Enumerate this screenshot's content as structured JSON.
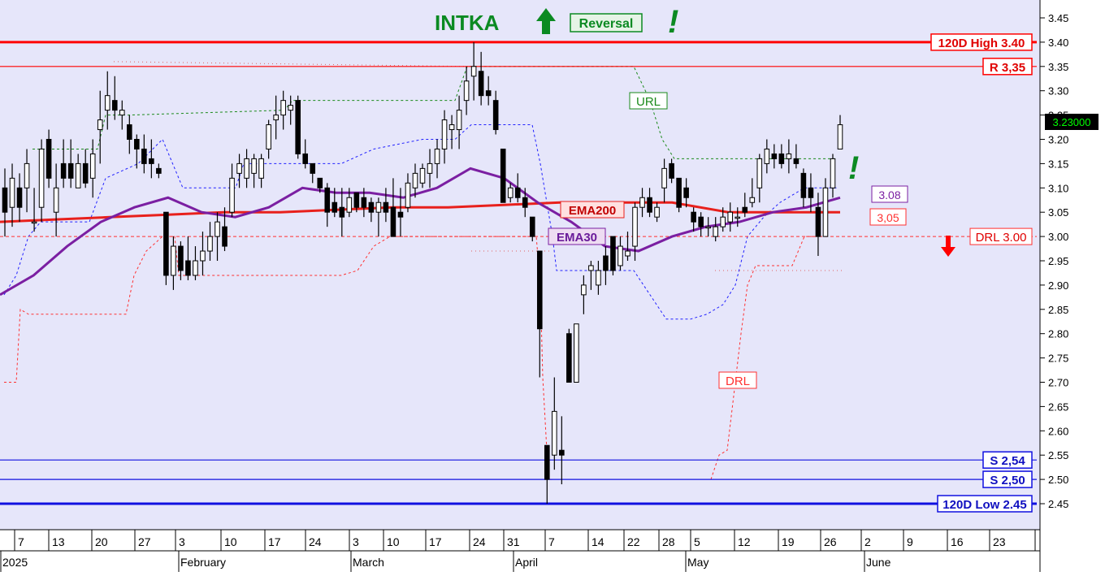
{
  "header": {
    "ticker": "INTKA",
    "signal_label": "Reversal",
    "arrow_up": "up-arrow",
    "exclaim": "!"
  },
  "colors": {
    "background": "#e6e6fa",
    "axis_bg": "#ffffff",
    "bull_candle": "#ffffff",
    "bear_candle": "#000000",
    "ema200": "#e8201c",
    "ema30": "#7b1fa2",
    "resistance": "#ff0000",
    "support": "#1010e0",
    "url_line": "#1a8a1a",
    "drl_line": "#ff3030",
    "band_blue": "#2020ff",
    "signal_green": "#0b8a22"
  },
  "chart_data": {
    "type": "candlestick",
    "title": "INTKA",
    "ylim": [
      2.41,
      3.47
    ],
    "y_ticks": [
      "3.45",
      "3.40",
      "3.35",
      "3.30",
      "3.25",
      "3.20",
      "3.15",
      "3.10",
      "3.05",
      "3.00",
      "2.95",
      "2.90",
      "2.85",
      "2.80",
      "2.75",
      "2.70",
      "2.65",
      "2.60",
      "2.55",
      "2.50",
      "2.45"
    ],
    "x_ticks": [
      "7",
      "13",
      "20",
      "27",
      "3",
      "10",
      "17",
      "24",
      "3",
      "10",
      "17",
      "24",
      "31",
      "7",
      "14",
      "22",
      "28",
      "5",
      "12",
      "19",
      "26",
      "2",
      "9",
      "16",
      "23"
    ],
    "months": [
      "2025",
      "February",
      "March",
      "April",
      "May",
      "June"
    ],
    "last_price_label": "3.23000",
    "candles": [
      {
        "o": 3.1,
        "h": 3.14,
        "l": 3.0,
        "c": 3.05
      },
      {
        "o": 3.06,
        "h": 3.15,
        "l": 3.02,
        "c": 3.12
      },
      {
        "o": 3.1,
        "h": 3.13,
        "l": 3.03,
        "c": 3.06
      },
      {
        "o": 3.1,
        "h": 3.18,
        "l": 3.05,
        "c": 3.15
      },
      {
        "o": 3.03,
        "h": 3.1,
        "l": 3.01,
        "c": 3.03
      },
      {
        "o": 3.06,
        "h": 3.2,
        "l": 3.03,
        "c": 3.18
      },
      {
        "o": 3.2,
        "h": 3.22,
        "l": 3.1,
        "c": 3.12
      },
      {
        "o": 3.05,
        "h": 3.15,
        "l": 3.0,
        "c": 3.1
      },
      {
        "o": 3.15,
        "h": 3.2,
        "l": 3.1,
        "c": 3.12
      },
      {
        "o": 3.15,
        "h": 3.2,
        "l": 3.1,
        "c": 3.12
      },
      {
        "o": 3.1,
        "h": 3.17,
        "l": 3.1,
        "c": 3.15
      },
      {
        "o": 3.15,
        "h": 3.18,
        "l": 3.1,
        "c": 3.11
      },
      {
        "o": 3.12,
        "h": 3.2,
        "l": 3.08,
        "c": 3.17
      },
      {
        "o": 3.22,
        "h": 3.3,
        "l": 3.15,
        "c": 3.24
      },
      {
        "o": 3.26,
        "h": 3.34,
        "l": 3.22,
        "c": 3.29
      },
      {
        "o": 3.28,
        "h": 3.33,
        "l": 3.24,
        "c": 3.26
      },
      {
        "o": 3.25,
        "h": 3.28,
        "l": 3.22,
        "c": 3.26
      },
      {
        "o": 3.23,
        "h": 3.25,
        "l": 3.17,
        "c": 3.2
      },
      {
        "o": 3.2,
        "h": 3.21,
        "l": 3.14,
        "c": 3.18
      },
      {
        "o": 3.18,
        "h": 3.21,
        "l": 3.13,
        "c": 3.15
      },
      {
        "o": 3.16,
        "h": 3.2,
        "l": 3.12,
        "c": 3.15
      },
      {
        "o": 3.14,
        "h": 3.15,
        "l": 3.12,
        "c": 3.13
      },
      {
        "o": 3.05,
        "h": 3.05,
        "l": 2.9,
        "c": 2.92
      },
      {
        "o": 2.92,
        "h": 3.0,
        "l": 2.89,
        "c": 2.98
      },
      {
        "o": 2.98,
        "h": 2.99,
        "l": 2.91,
        "c": 2.93
      },
      {
        "o": 2.95,
        "h": 3.0,
        "l": 2.91,
        "c": 2.92
      },
      {
        "o": 2.92,
        "h": 2.98,
        "l": 2.91,
        "c": 2.95
      },
      {
        "o": 2.95,
        "h": 3.01,
        "l": 2.92,
        "c": 2.97
      },
      {
        "o": 2.97,
        "h": 3.03,
        "l": 2.95,
        "c": 3.0
      },
      {
        "o": 3.0,
        "h": 3.05,
        "l": 2.95,
        "c": 3.03
      },
      {
        "o": 3.02,
        "h": 3.06,
        "l": 2.97,
        "c": 2.98
      },
      {
        "o": 3.05,
        "h": 3.15,
        "l": 3.04,
        "c": 3.12
      },
      {
        "o": 3.13,
        "h": 3.17,
        "l": 3.1,
        "c": 3.15
      },
      {
        "o": 3.12,
        "h": 3.18,
        "l": 3.1,
        "c": 3.16
      },
      {
        "o": 3.13,
        "h": 3.17,
        "l": 3.1,
        "c": 3.16
      },
      {
        "o": 3.12,
        "h": 3.17,
        "l": 3.1,
        "c": 3.16
      },
      {
        "o": 3.18,
        "h": 3.24,
        "l": 3.16,
        "c": 3.23
      },
      {
        "o": 3.24,
        "h": 3.29,
        "l": 3.2,
        "c": 3.25
      },
      {
        "o": 3.25,
        "h": 3.3,
        "l": 3.22,
        "c": 3.28
      },
      {
        "o": 3.26,
        "h": 3.29,
        "l": 3.23,
        "c": 3.27
      },
      {
        "o": 3.28,
        "h": 3.29,
        "l": 3.16,
        "c": 3.17
      },
      {
        "o": 3.17,
        "h": 3.2,
        "l": 3.14,
        "c": 3.15
      },
      {
        "o": 3.15,
        "h": 3.15,
        "l": 3.11,
        "c": 3.13
      },
      {
        "o": 3.12,
        "h": 3.12,
        "l": 3.09,
        "c": 3.1
      },
      {
        "o": 3.1,
        "h": 3.11,
        "l": 3.02,
        "c": 3.05
      },
      {
        "o": 3.07,
        "h": 3.1,
        "l": 3.04,
        "c": 3.05
      },
      {
        "o": 3.06,
        "h": 3.1,
        "l": 3.0,
        "c": 3.04
      },
      {
        "o": 3.05,
        "h": 3.1,
        "l": 3.04,
        "c": 3.08
      },
      {
        "o": 3.09,
        "h": 3.09,
        "l": 3.05,
        "c": 3.06
      },
      {
        "o": 3.08,
        "h": 3.1,
        "l": 3.04,
        "c": 3.06
      },
      {
        "o": 3.07,
        "h": 3.08,
        "l": 3.03,
        "c": 3.05
      },
      {
        "o": 3.05,
        "h": 3.08,
        "l": 3.0,
        "c": 3.07
      },
      {
        "o": 3.07,
        "h": 3.1,
        "l": 3.03,
        "c": 3.05
      },
      {
        "o": 3.06,
        "h": 3.12,
        "l": 3.0,
        "c": 3.0
      },
      {
        "o": 3.05,
        "h": 3.1,
        "l": 3.0,
        "c": 3.04
      },
      {
        "o": 3.06,
        "h": 3.13,
        "l": 3.05,
        "c": 3.11
      },
      {
        "o": 3.1,
        "h": 3.15,
        "l": 3.08,
        "c": 3.13
      },
      {
        "o": 3.11,
        "h": 3.15,
        "l": 3.1,
        "c": 3.14
      },
      {
        "o": 3.13,
        "h": 3.18,
        "l": 3.1,
        "c": 3.15
      },
      {
        "o": 3.15,
        "h": 3.2,
        "l": 3.12,
        "c": 3.18
      },
      {
        "o": 3.18,
        "h": 3.26,
        "l": 3.15,
        "c": 3.24
      },
      {
        "o": 3.22,
        "h": 3.25,
        "l": 3.18,
        "c": 3.23
      },
      {
        "o": 3.22,
        "h": 3.29,
        "l": 3.18,
        "c": 3.26
      },
      {
        "o": 3.28,
        "h": 3.35,
        "l": 3.25,
        "c": 3.32
      },
      {
        "o": 3.33,
        "h": 3.4,
        "l": 3.28,
        "c": 3.35
      },
      {
        "o": 3.34,
        "h": 3.38,
        "l": 3.27,
        "c": 3.29
      },
      {
        "o": 3.3,
        "h": 3.33,
        "l": 3.27,
        "c": 3.29
      },
      {
        "o": 3.28,
        "h": 3.3,
        "l": 3.21,
        "c": 3.22
      },
      {
        "o": 3.18,
        "h": 3.18,
        "l": 3.07,
        "c": 3.07
      },
      {
        "o": 3.08,
        "h": 3.11,
        "l": 3.07,
        "c": 3.1
      },
      {
        "o": 3.1,
        "h": 3.13,
        "l": 3.07,
        "c": 3.08
      },
      {
        "o": 3.08,
        "h": 3.1,
        "l": 3.04,
        "c": 3.06
      },
      {
        "o": 3.04,
        "h": 3.04,
        "l": 2.99,
        "c": 3.0
      },
      {
        "o": 2.97,
        "h": 2.97,
        "l": 2.71,
        "c": 2.81
      },
      {
        "o": 2.57,
        "h": 2.57,
        "l": 2.45,
        "c": 2.5
      },
      {
        "o": 2.55,
        "h": 2.71,
        "l": 2.52,
        "c": 2.64
      },
      {
        "o": 2.56,
        "h": 2.63,
        "l": 2.49,
        "c": 2.55
      },
      {
        "o": 2.8,
        "h": 2.81,
        "l": 2.7,
        "c": 2.7
      },
      {
        "o": 2.7,
        "h": 2.82,
        "l": 2.7,
        "c": 2.82
      },
      {
        "o": 2.88,
        "h": 2.92,
        "l": 2.84,
        "c": 2.9
      },
      {
        "o": 2.93,
        "h": 2.95,
        "l": 2.89,
        "c": 2.94
      },
      {
        "o": 2.9,
        "h": 2.95,
        "l": 2.88,
        "c": 2.93
      },
      {
        "o": 2.96,
        "h": 2.98,
        "l": 2.9,
        "c": 2.93
      },
      {
        "o": 3.0,
        "h": 3.0,
        "l": 2.92,
        "c": 2.93
      },
      {
        "o": 2.94,
        "h": 3.0,
        "l": 2.93,
        "c": 2.98
      },
      {
        "o": 2.96,
        "h": 3.01,
        "l": 2.95,
        "c": 2.97
      },
      {
        "o": 2.98,
        "h": 3.07,
        "l": 2.95,
        "c": 3.06
      },
      {
        "o": 3.06,
        "h": 3.1,
        "l": 3.04,
        "c": 3.08
      },
      {
        "o": 3.08,
        "h": 3.1,
        "l": 3.04,
        "c": 3.05
      },
      {
        "o": 3.04,
        "h": 3.07,
        "l": 3.03,
        "c": 3.06
      },
      {
        "o": 3.1,
        "h": 3.16,
        "l": 3.07,
        "c": 3.14
      },
      {
        "o": 3.15,
        "h": 3.16,
        "l": 3.11,
        "c": 3.12
      },
      {
        "o": 3.12,
        "h": 3.12,
        "l": 3.05,
        "c": 3.06
      },
      {
        "o": 3.1,
        "h": 3.12,
        "l": 3.06,
        "c": 3.08
      },
      {
        "o": 3.05,
        "h": 3.06,
        "l": 3.01,
        "c": 3.03
      },
      {
        "o": 3.04,
        "h": 3.05,
        "l": 3.0,
        "c": 3.02
      },
      {
        "o": 3.02,
        "h": 3.04,
        "l": 3.0,
        "c": 3.02
      },
      {
        "o": 3.0,
        "h": 3.04,
        "l": 2.99,
        "c": 3.02
      },
      {
        "o": 3.02,
        "h": 3.06,
        "l": 3.01,
        "c": 3.04
      },
      {
        "o": 3.03,
        "h": 3.07,
        "l": 3.01,
        "c": 3.05
      },
      {
        "o": 3.04,
        "h": 3.06,
        "l": 3.02,
        "c": 3.04
      },
      {
        "o": 3.06,
        "h": 3.09,
        "l": 3.04,
        "c": 3.05
      },
      {
        "o": 3.07,
        "h": 3.12,
        "l": 3.06,
        "c": 3.08
      },
      {
        "o": 3.1,
        "h": 3.17,
        "l": 3.07,
        "c": 3.16
      },
      {
        "o": 3.15,
        "h": 3.2,
        "l": 3.13,
        "c": 3.18
      },
      {
        "o": 3.17,
        "h": 3.19,
        "l": 3.14,
        "c": 3.16
      },
      {
        "o": 3.17,
        "h": 3.19,
        "l": 3.14,
        "c": 3.15
      },
      {
        "o": 3.16,
        "h": 3.2,
        "l": 3.13,
        "c": 3.17
      },
      {
        "o": 3.16,
        "h": 3.19,
        "l": 3.14,
        "c": 3.15
      },
      {
        "o": 3.13,
        "h": 3.14,
        "l": 3.06,
        "c": 3.08
      },
      {
        "o": 3.1,
        "h": 3.13,
        "l": 3.05,
        "c": 3.08
      },
      {
        "o": 3.06,
        "h": 3.09,
        "l": 2.96,
        "c": 3.0
      },
      {
        "o": 3.0,
        "h": 3.12,
        "l": 3.0,
        "c": 3.1
      },
      {
        "o": 3.1,
        "h": 3.17,
        "l": 3.08,
        "c": 3.16
      },
      {
        "o": 3.18,
        "h": 3.25,
        "l": 3.18,
        "c": 3.23
      }
    ],
    "ema200": [
      3.03,
      3.035,
      3.04,
      3.045,
      3.05,
      3.05,
      3.055,
      3.06,
      3.06,
      3.065,
      3.07,
      3.07,
      3.07,
      3.05,
      3.05,
      3.05
    ],
    "ema30": [
      2.88,
      2.92,
      2.98,
      3.03,
      3.06,
      3.08,
      3.05,
      3.04,
      3.06,
      3.1,
      3.09,
      3.09,
      3.08,
      3.1,
      3.14,
      3.12,
      3.07,
      3.03,
      2.98,
      2.97,
      3.0,
      3.02,
      3.03,
      3.05,
      3.06,
      3.08
    ],
    "levels": [
      {
        "name": "120D High",
        "value": 3.4,
        "label": "120D High 3.40"
      },
      {
        "name": "R",
        "value": 3.35,
        "label": "R 3,35"
      },
      {
        "name": "DRL",
        "value": 3.0,
        "label": "DRL 3.00"
      },
      {
        "name": "S1",
        "value": 2.54,
        "label": "S 2,54"
      },
      {
        "name": "S2",
        "value": 2.5,
        "label": "S 2,50"
      },
      {
        "name": "120D Low",
        "value": 2.45,
        "label": "120D Low 2.45"
      }
    ],
    "annotations": {
      "ema200_label": "EMA200",
      "ema30_label": "EMA30",
      "url_label": "URL",
      "drl_label": "DRL",
      "ema30_value": "3.08",
      "ema200_value": "3,05"
    }
  }
}
